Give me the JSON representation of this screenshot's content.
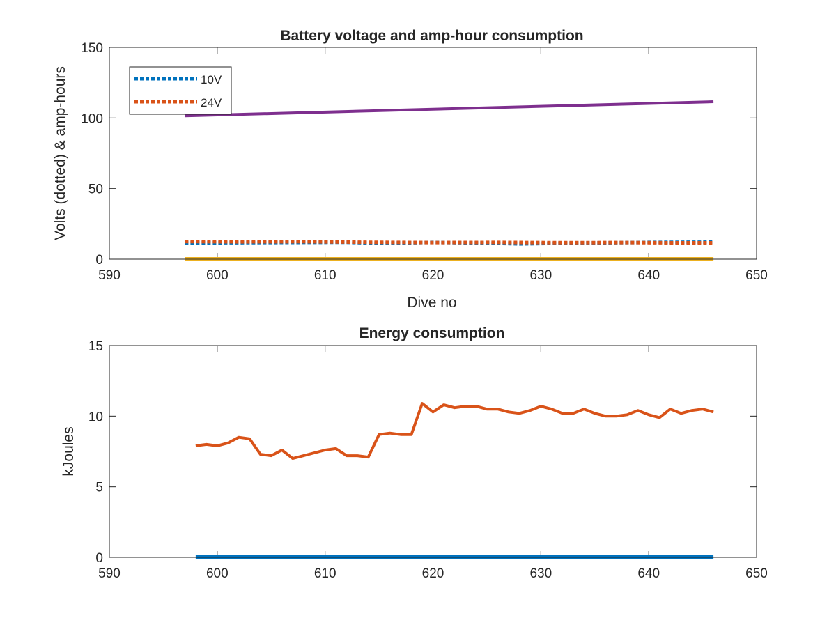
{
  "chart_data": [
    {
      "type": "line",
      "title": "Battery voltage and amp-hour consumption",
      "xlabel": "Dive no",
      "ylabel": "Volts (dotted) & amp-hours",
      "xlim": [
        590,
        650
      ],
      "ylim": [
        0,
        150
      ],
      "xticks": [
        "590",
        "600",
        "610",
        "620",
        "630",
        "640",
        "650"
      ],
      "yticks": [
        "0",
        "50",
        "100",
        "150"
      ],
      "legend_position": "top-left",
      "series": [
        {
          "name": "10V",
          "color": "#0072BD",
          "style": "dotted",
          "x": [
            597,
            605,
            612,
            615,
            620,
            625,
            628,
            632,
            636,
            640,
            646
          ],
          "y": [
            11.5,
            11.8,
            12.0,
            11.2,
            11.9,
            11.4,
            10.8,
            11.3,
            11.6,
            11.9,
            12.1
          ]
        },
        {
          "name": "24V",
          "color": "#D95319",
          "style": "dotted",
          "x": [
            597,
            602,
            608,
            614,
            620,
            626,
            632,
            638,
            642,
            646
          ],
          "y": [
            12.5,
            12.3,
            12.4,
            12.0,
            11.8,
            11.9,
            11.7,
            11.8,
            11.6,
            11.6
          ]
        },
        {
          "color": "#7E2F8E",
          "style": "solid",
          "x": [
            597,
            646
          ],
          "y": [
            101.5,
            111.5
          ]
        },
        {
          "color": "#EDB120",
          "style": "solid",
          "x": [
            597,
            646
          ],
          "y": [
            0,
            0
          ]
        }
      ]
    },
    {
      "type": "line",
      "title": "Energy consumption",
      "xlabel": "",
      "ylabel": "kJoules",
      "xlim": [
        590,
        650
      ],
      "ylim": [
        0,
        15
      ],
      "xticks": [
        "590",
        "600",
        "610",
        "620",
        "630",
        "640",
        "650"
      ],
      "yticks": [
        "0",
        "5",
        "10",
        "15"
      ],
      "series": [
        {
          "color": "#0072BD",
          "style": "solid",
          "x": [
            598,
            646
          ],
          "y": [
            0,
            0
          ]
        },
        {
          "color": "#D95319",
          "style": "solid",
          "x": [
            598,
            599,
            600,
            601,
            602,
            603,
            604,
            605,
            606,
            607,
            608,
            609,
            610,
            611,
            612,
            613,
            614,
            615,
            616,
            617,
            618,
            619,
            620,
            621,
            622,
            623,
            624,
            625,
            626,
            627,
            628,
            629,
            630,
            631,
            632,
            633,
            634,
            635,
            636,
            637,
            638,
            639,
            640,
            641,
            642,
            643,
            644,
            645,
            646
          ],
          "y": [
            7.9,
            8.0,
            7.9,
            8.1,
            8.5,
            8.4,
            7.3,
            7.2,
            7.6,
            7.0,
            7.2,
            7.4,
            7.6,
            7.7,
            7.2,
            7.2,
            7.1,
            8.7,
            8.8,
            8.7,
            8.7,
            10.9,
            10.3,
            10.8,
            10.6,
            10.7,
            10.7,
            10.5,
            10.5,
            10.3,
            10.2,
            10.4,
            10.7,
            10.5,
            10.2,
            10.2,
            10.5,
            10.2,
            10.0,
            10.0,
            10.1,
            10.4,
            10.1,
            9.9,
            10.5,
            10.2,
            10.4,
            10.5,
            10.3
          ]
        }
      ]
    }
  ]
}
